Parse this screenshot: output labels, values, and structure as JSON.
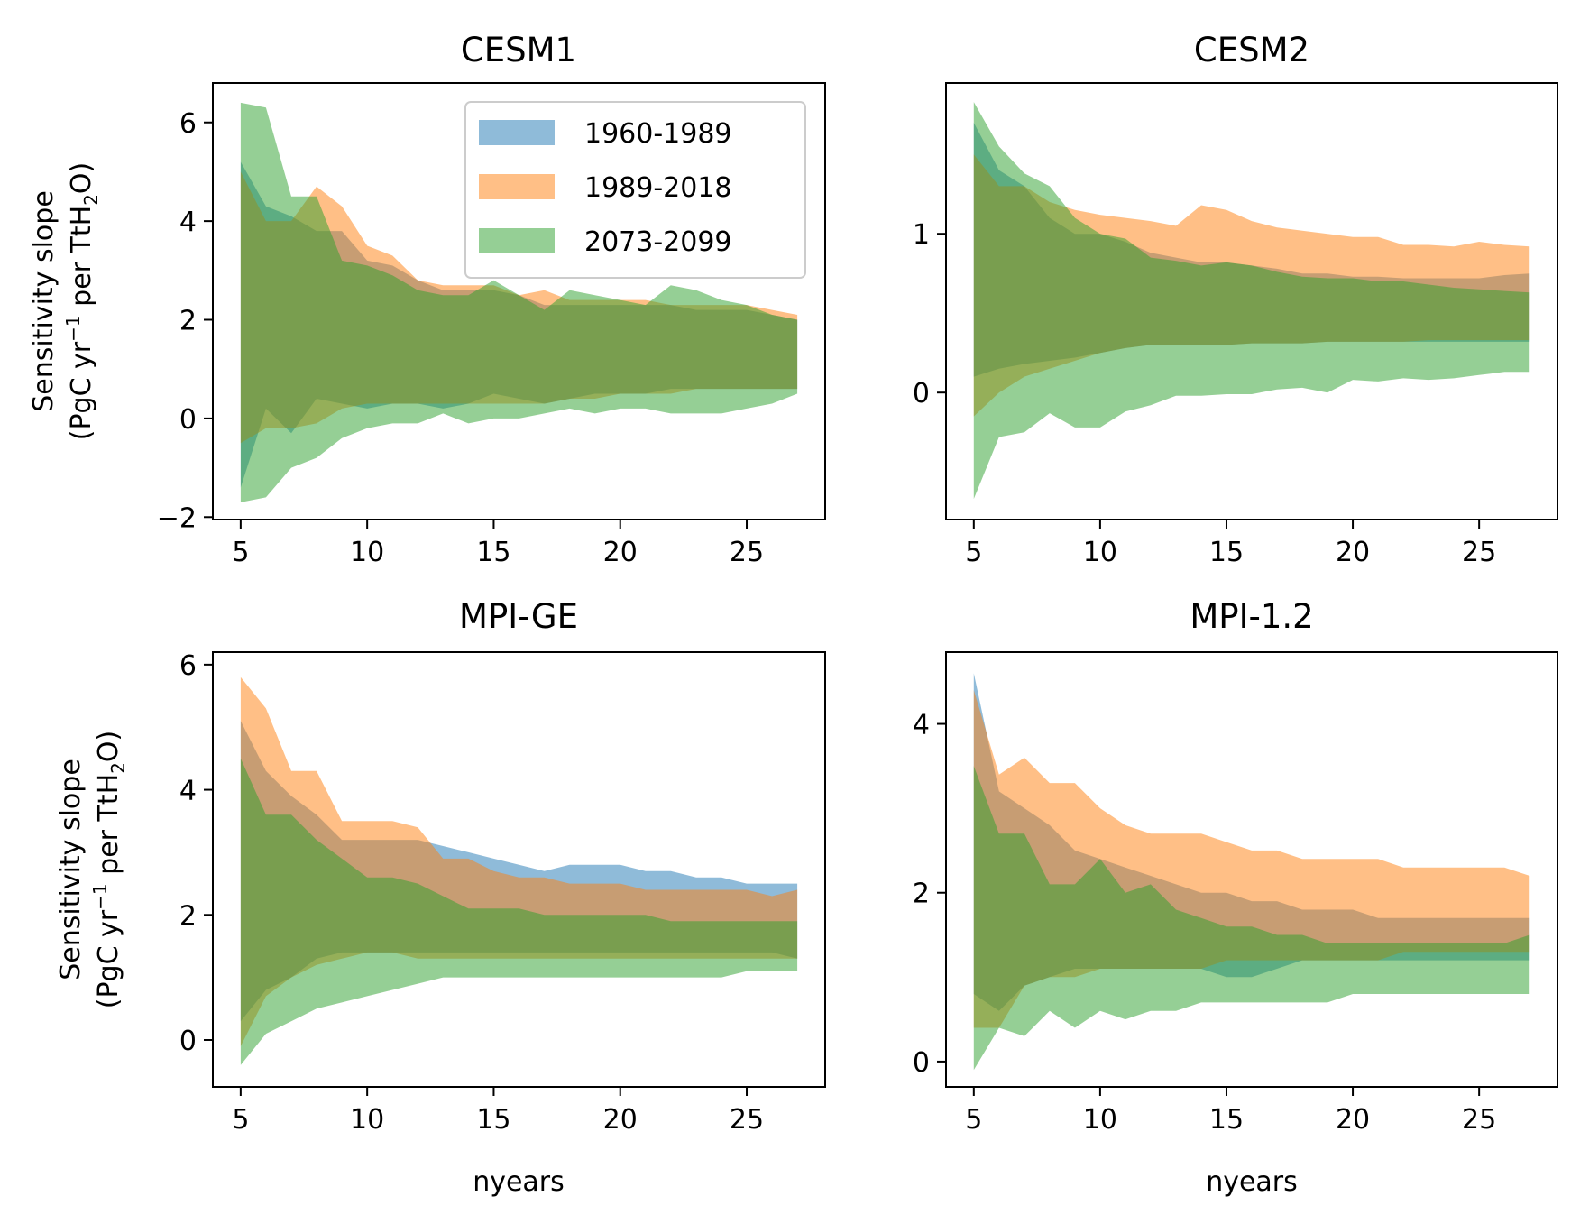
{
  "legend": {
    "location": "upper right of CESM1 panel",
    "entries": [
      {
        "label": "1960-1989",
        "color": "#1f77b4"
      },
      {
        "label": "1989-2018",
        "color": "#ff7f0e"
      },
      {
        "label": "2073-2099",
        "color": "#2ca02c"
      }
    ]
  },
  "ylabel": {
    "line1": "Sensitivity slope",
    "line2_pre": "(PgC yr",
    "line2_sup": "−1",
    "line2_mid": " per TtH",
    "line2_sub": "2",
    "line2_post": "O)"
  },
  "xlabel": "nyears",
  "chart_data": [
    {
      "type": "area",
      "title": "CESM1",
      "x": [
        5,
        6,
        7,
        8,
        9,
        10,
        11,
        12,
        13,
        14,
        15,
        16,
        17,
        18,
        19,
        20,
        21,
        22,
        23,
        24,
        25,
        26,
        27
      ],
      "xlim": [
        3.9,
        28.1
      ],
      "ylim": [
        -2.05,
        6.8
      ],
      "xticks": [
        5,
        10,
        15,
        20,
        25
      ],
      "yticks": [
        -2,
        0,
        2,
        4,
        6
      ],
      "ytick_labels": [
        "−2",
        "0",
        "2",
        "4",
        "6"
      ],
      "ylabel_shown": true,
      "xlabel_shown": false,
      "legend_shown": true,
      "series": [
        {
          "name": "1960-1989",
          "color": "#1f77b4",
          "upper": [
            5.2,
            4.3,
            4.1,
            3.8,
            3.8,
            3.2,
            3.1,
            2.8,
            2.6,
            2.6,
            2.6,
            2.5,
            2.3,
            2.3,
            2.3,
            2.3,
            2.3,
            2.3,
            2.2,
            2.2,
            2.2,
            2.1,
            2.0
          ],
          "lower": [
            -1.4,
            0.2,
            -0.3,
            0.4,
            0.3,
            0.2,
            0.3,
            0.3,
            0.2,
            0.3,
            0.5,
            0.4,
            0.3,
            0.4,
            0.5,
            0.5,
            0.5,
            0.6,
            0.6,
            0.6,
            0.6,
            0.6,
            0.6
          ]
        },
        {
          "name": "1989-2018",
          "color": "#ff7f0e",
          "upper": [
            5.0,
            4.0,
            4.0,
            4.7,
            4.3,
            3.5,
            3.3,
            2.8,
            2.7,
            2.7,
            2.7,
            2.5,
            2.6,
            2.4,
            2.4,
            2.4,
            2.4,
            2.3,
            2.3,
            2.3,
            2.3,
            2.2,
            2.1
          ],
          "lower": [
            -0.5,
            -0.2,
            -0.2,
            -0.1,
            0.2,
            0.3,
            0.3,
            0.3,
            0.3,
            0.3,
            0.3,
            0.3,
            0.3,
            0.4,
            0.4,
            0.5,
            0.5,
            0.5,
            0.6,
            0.6,
            0.6,
            0.6,
            0.6
          ]
        },
        {
          "name": "2073-2099",
          "color": "#2ca02c",
          "upper": [
            6.4,
            6.3,
            4.5,
            4.5,
            3.2,
            3.1,
            2.9,
            2.6,
            2.5,
            2.5,
            2.8,
            2.5,
            2.2,
            2.6,
            2.5,
            2.4,
            2.3,
            2.7,
            2.6,
            2.4,
            2.3,
            2.1,
            2.0
          ],
          "lower": [
            -1.7,
            -1.6,
            -1.0,
            -0.8,
            -0.4,
            -0.2,
            -0.1,
            -0.1,
            0.1,
            -0.1,
            0.0,
            0.0,
            0.1,
            0.2,
            0.1,
            0.2,
            0.2,
            0.1,
            0.1,
            0.1,
            0.2,
            0.3,
            0.5
          ]
        }
      ]
    },
    {
      "type": "area",
      "title": "CESM2",
      "x": [
        5,
        6,
        7,
        8,
        9,
        10,
        11,
        12,
        13,
        14,
        15,
        16,
        17,
        18,
        19,
        20,
        21,
        22,
        23,
        24,
        25,
        26,
        27
      ],
      "xlim": [
        3.9,
        28.1
      ],
      "ylim": [
        -0.8,
        1.95
      ],
      "xticks": [
        5,
        10,
        15,
        20,
        25
      ],
      "yticks": [
        0,
        1
      ],
      "ytick_labels": [
        "0",
        "1"
      ],
      "ylabel_shown": false,
      "xlabel_shown": false,
      "legend_shown": false,
      "series": [
        {
          "name": "1960-1989",
          "color": "#1f77b4",
          "upper": [
            1.7,
            1.4,
            1.3,
            1.1,
            1.0,
            1.0,
            0.95,
            0.88,
            0.85,
            0.82,
            0.82,
            0.8,
            0.78,
            0.75,
            0.75,
            0.73,
            0.73,
            0.72,
            0.72,
            0.72,
            0.72,
            0.74,
            0.75
          ],
          "lower": [
            0.1,
            0.15,
            0.18,
            0.2,
            0.22,
            0.25,
            0.28,
            0.3,
            0.3,
            0.3,
            0.3,
            0.31,
            0.31,
            0.31,
            0.32,
            0.32,
            0.32,
            0.32,
            0.32,
            0.32,
            0.32,
            0.32,
            0.32
          ]
        },
        {
          "name": "1989-2018",
          "color": "#ff7f0e",
          "upper": [
            1.5,
            1.3,
            1.3,
            1.2,
            1.15,
            1.12,
            1.1,
            1.08,
            1.05,
            1.18,
            1.15,
            1.08,
            1.04,
            1.02,
            1.0,
            0.98,
            0.98,
            0.93,
            0.93,
            0.92,
            0.95,
            0.93,
            0.92
          ],
          "lower": [
            -0.15,
            0.0,
            0.1,
            0.15,
            0.2,
            0.25,
            0.28,
            0.3,
            0.3,
            0.3,
            0.3,
            0.31,
            0.31,
            0.31,
            0.32,
            0.32,
            0.32,
            0.32,
            0.33,
            0.33,
            0.33,
            0.33,
            0.33
          ]
        },
        {
          "name": "2073-2099",
          "color": "#2ca02c",
          "upper": [
            1.83,
            1.55,
            1.38,
            1.3,
            1.1,
            1.0,
            0.97,
            0.85,
            0.83,
            0.8,
            0.82,
            0.8,
            0.76,
            0.73,
            0.72,
            0.72,
            0.7,
            0.7,
            0.68,
            0.66,
            0.65,
            0.64,
            0.63
          ],
          "lower": [
            -0.67,
            -0.28,
            -0.25,
            -0.13,
            -0.22,
            -0.22,
            -0.12,
            -0.08,
            -0.02,
            -0.02,
            -0.01,
            -0.01,
            0.02,
            0.03,
            0.0,
            0.08,
            0.07,
            0.09,
            0.08,
            0.09,
            0.11,
            0.13,
            0.13
          ]
        }
      ]
    },
    {
      "type": "area",
      "title": "MPI-GE",
      "x": [
        5,
        6,
        7,
        8,
        9,
        10,
        11,
        12,
        13,
        14,
        15,
        16,
        17,
        18,
        19,
        20,
        21,
        22,
        23,
        24,
        25,
        26,
        27
      ],
      "xlim": [
        3.9,
        28.1
      ],
      "ylim": [
        -0.75,
        6.2
      ],
      "xticks": [
        5,
        10,
        15,
        20,
        25
      ],
      "yticks": [
        0,
        2,
        4,
        6
      ],
      "ytick_labels": [
        "0",
        "2",
        "4",
        "6"
      ],
      "ylabel_shown": true,
      "xlabel_shown": true,
      "legend_shown": false,
      "series": [
        {
          "name": "1960-1989",
          "color": "#1f77b4",
          "upper": [
            5.1,
            4.3,
            3.9,
            3.6,
            3.2,
            3.2,
            3.2,
            3.2,
            3.1,
            3.0,
            2.9,
            2.8,
            2.7,
            2.8,
            2.8,
            2.8,
            2.7,
            2.7,
            2.6,
            2.6,
            2.5,
            2.5,
            2.5
          ],
          "lower": [
            0.3,
            0.8,
            1.0,
            1.3,
            1.4,
            1.4,
            1.4,
            1.4,
            1.4,
            1.4,
            1.4,
            1.4,
            1.4,
            1.4,
            1.4,
            1.4,
            1.4,
            1.4,
            1.4,
            1.4,
            1.4,
            1.4,
            1.3
          ]
        },
        {
          "name": "1989-2018",
          "color": "#ff7f0e",
          "upper": [
            5.8,
            5.3,
            4.3,
            4.3,
            3.5,
            3.5,
            3.5,
            3.4,
            2.9,
            2.9,
            2.7,
            2.6,
            2.6,
            2.5,
            2.5,
            2.5,
            2.4,
            2.4,
            2.4,
            2.4,
            2.4,
            2.3,
            2.4
          ],
          "lower": [
            -0.1,
            0.7,
            1.0,
            1.2,
            1.3,
            1.4,
            1.4,
            1.3,
            1.3,
            1.3,
            1.3,
            1.3,
            1.3,
            1.3,
            1.3,
            1.3,
            1.3,
            1.3,
            1.3,
            1.3,
            1.3,
            1.3,
            1.3
          ]
        },
        {
          "name": "2073-2099",
          "color": "#2ca02c",
          "upper": [
            4.5,
            3.6,
            3.6,
            3.2,
            2.9,
            2.6,
            2.6,
            2.5,
            2.3,
            2.1,
            2.1,
            2.1,
            2.0,
            2.0,
            2.0,
            2.0,
            2.0,
            1.9,
            1.9,
            1.9,
            1.9,
            1.9,
            1.9
          ],
          "lower": [
            -0.4,
            0.1,
            0.3,
            0.5,
            0.6,
            0.7,
            0.8,
            0.9,
            1.0,
            1.0,
            1.0,
            1.0,
            1.0,
            1.0,
            1.0,
            1.0,
            1.0,
            1.0,
            1.0,
            1.0,
            1.1,
            1.1,
            1.1
          ]
        }
      ]
    },
    {
      "type": "area",
      "title": "MPI-1.2",
      "x": [
        5,
        6,
        7,
        8,
        9,
        10,
        11,
        12,
        13,
        14,
        15,
        16,
        17,
        18,
        19,
        20,
        21,
        22,
        23,
        24,
        25,
        26,
        27
      ],
      "xlim": [
        3.9,
        28.1
      ],
      "ylim": [
        -0.3,
        4.85
      ],
      "xticks": [
        5,
        10,
        15,
        20,
        25
      ],
      "yticks": [
        0,
        2,
        4
      ],
      "ytick_labels": [
        "0",
        "2",
        "4"
      ],
      "ylabel_shown": false,
      "xlabel_shown": true,
      "legend_shown": false,
      "series": [
        {
          "name": "1960-1989",
          "color": "#1f77b4",
          "upper": [
            4.6,
            3.2,
            3.0,
            2.8,
            2.5,
            2.4,
            2.3,
            2.2,
            2.1,
            2.0,
            2.0,
            1.9,
            1.9,
            1.8,
            1.8,
            1.8,
            1.7,
            1.7,
            1.7,
            1.7,
            1.7,
            1.7,
            1.7
          ],
          "lower": [
            0.8,
            0.6,
            0.9,
            1.0,
            1.1,
            1.1,
            1.1,
            1.1,
            1.1,
            1.1,
            1.0,
            1.0,
            1.1,
            1.2,
            1.2,
            1.2,
            1.2,
            1.2,
            1.2,
            1.2,
            1.2,
            1.2,
            1.2
          ]
        },
        {
          "name": "1989-2018",
          "color": "#ff7f0e",
          "upper": [
            4.4,
            3.4,
            3.6,
            3.3,
            3.3,
            3.0,
            2.8,
            2.7,
            2.7,
            2.7,
            2.6,
            2.5,
            2.5,
            2.4,
            2.4,
            2.4,
            2.4,
            2.3,
            2.3,
            2.3,
            2.3,
            2.3,
            2.2
          ],
          "lower": [
            0.4,
            0.4,
            0.9,
            1.0,
            1.0,
            1.1,
            1.1,
            1.1,
            1.1,
            1.1,
            1.2,
            1.2,
            1.2,
            1.2,
            1.2,
            1.2,
            1.2,
            1.3,
            1.3,
            1.3,
            1.3,
            1.3,
            1.3
          ]
        },
        {
          "name": "2073-2099",
          "color": "#2ca02c",
          "upper": [
            3.5,
            2.7,
            2.7,
            2.1,
            2.1,
            2.4,
            2.0,
            2.1,
            1.8,
            1.7,
            1.6,
            1.6,
            1.5,
            1.5,
            1.4,
            1.4,
            1.4,
            1.4,
            1.4,
            1.4,
            1.4,
            1.4,
            1.5
          ],
          "lower": [
            -0.1,
            0.4,
            0.3,
            0.6,
            0.4,
            0.6,
            0.5,
            0.6,
            0.6,
            0.7,
            0.7,
            0.7,
            0.7,
            0.7,
            0.7,
            0.8,
            0.8,
            0.8,
            0.8,
            0.8,
            0.8,
            0.8,
            0.8
          ]
        }
      ]
    }
  ]
}
